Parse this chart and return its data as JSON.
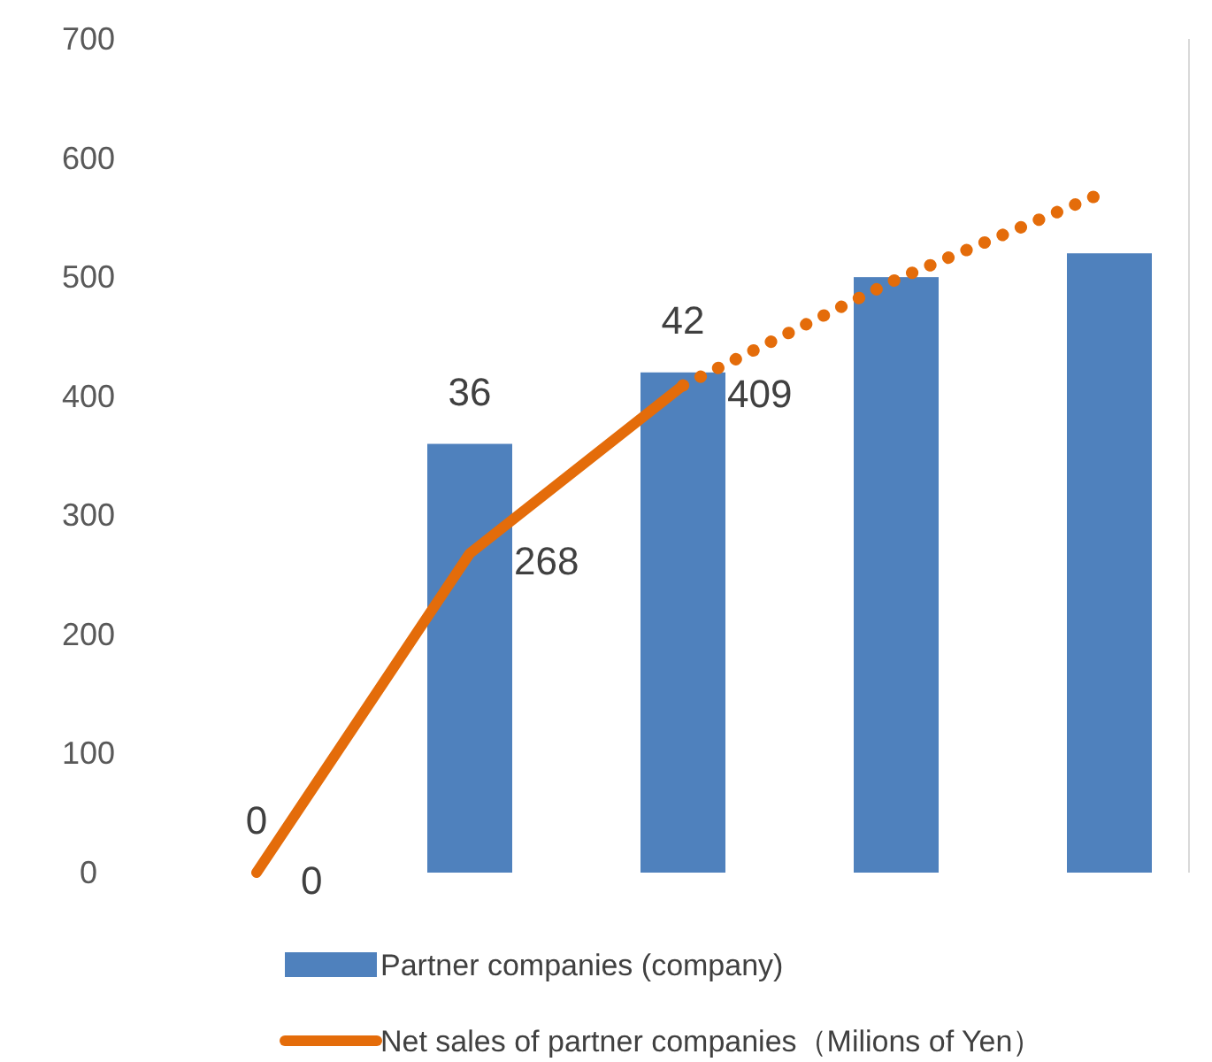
{
  "chart_data": {
    "type": "bar",
    "categories": [
      null,
      null,
      null,
      null,
      null
    ],
    "ylim": [
      0,
      700
    ],
    "yticks": [
      0,
      100,
      200,
      300,
      400,
      500,
      600,
      700
    ],
    "y2lim": [
      0,
      70
    ],
    "tick_labels": "y",
    "grid": false,
    "legend": "bottom",
    "series": [
      {
        "name": "Partner companies (company)",
        "axis": "y2",
        "color": "#4f81bd",
        "values": [
          0,
          36,
          42,
          50,
          52
        ],
        "value_labels": [
          "0",
          "36",
          "42",
          null,
          null
        ]
      },
      {
        "name": "Net sales of partner companies（Milions of Yen）",
        "type": "line",
        "color": "#e46c0a",
        "line_style": "solid",
        "values": [
          0,
          268,
          409,
          null,
          null
        ],
        "value_labels": [
          "0",
          "268",
          "409",
          null,
          null
        ]
      },
      {
        "type": "line",
        "color": "#e46c0a",
        "line_style": "dotted",
        "values": [
          null,
          null,
          409,
          498,
          573
        ]
      }
    ]
  }
}
